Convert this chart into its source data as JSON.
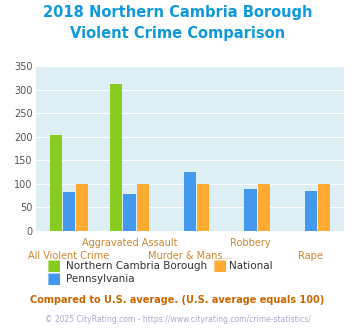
{
  "title_line1": "2018 Northern Cambria Borough",
  "title_line2": "Violent Crime Comparison",
  "title_color": "#1199dd",
  "title_fontsize": 10.5,
  "categories": [
    "All Violent Crime",
    "Aggravated Assault",
    "Murder & Mans...",
    "Robbery",
    "Rape"
  ],
  "xlabel_color_top": "#cc8833",
  "xlabel_color_bot": "#cc8833",
  "series_order": [
    "Northern Cambria Borough",
    "Pennsylvania",
    "National"
  ],
  "series": {
    "Northern Cambria Borough": {
      "values": [
        203,
        311,
        0,
        0,
        0
      ],
      "color": "#88cc22"
    },
    "National": {
      "values": [
        100,
        100,
        100,
        100,
        100
      ],
      "color": "#ffaa33"
    },
    "Pennsylvania": {
      "values": [
        82,
        79,
        126,
        90,
        85
      ],
      "color": "#4499ee"
    }
  },
  "ylim": [
    0,
    350
  ],
  "yticks": [
    0,
    50,
    100,
    150,
    200,
    250,
    300,
    350
  ],
  "bg_color": "#ddeef5",
  "grid_color": "#ffffff",
  "legend_fontsize": 7.5,
  "axis_fontsize": 7,
  "footnote1": "Compared to U.S. average. (U.S. average equals 100)",
  "footnote1_color": "#cc6600",
  "footnote2": "© 2025 CityRating.com - https://www.cityrating.com/crime-statistics/",
  "footnote2_color": "#aaaacc",
  "bar_width": 0.22
}
